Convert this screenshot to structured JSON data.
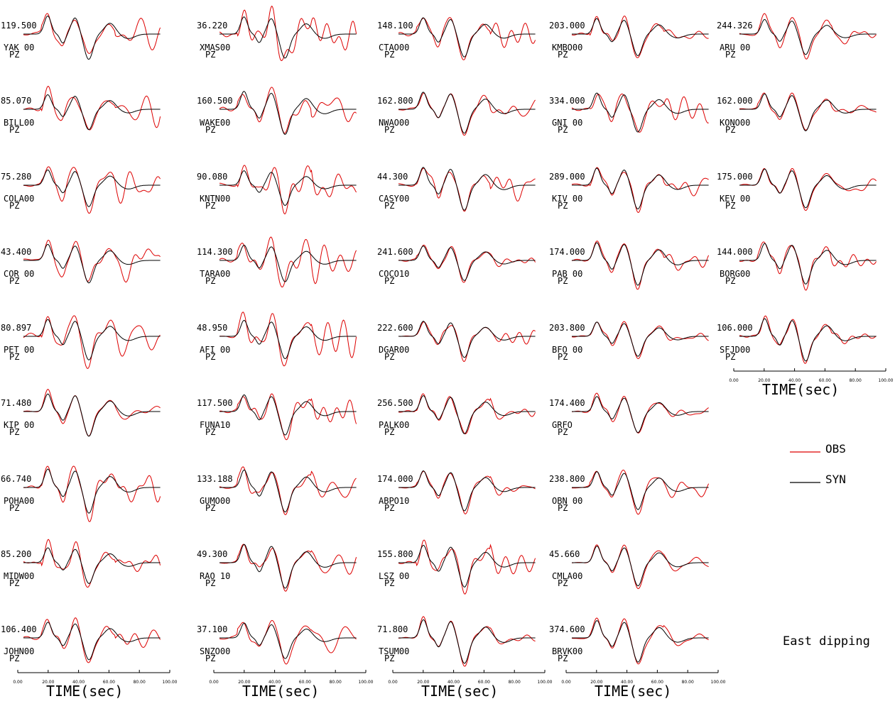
{
  "chart_data": {
    "type": "line",
    "xlabel": "TIME(sec)",
    "xlim": [
      0,
      100
    ],
    "x_ticks": [
      "0.00",
      "20.00",
      "40.00",
      "60.00",
      "80.00",
      "100.00"
    ],
    "component": "PZ",
    "legend": [
      {
        "name": "OBS",
        "color": "#dd0000"
      },
      {
        "name": "SYN",
        "color": "#000000"
      }
    ],
    "legend_placement": "right",
    "annotation": "East dipping",
    "columns": [
      [
        {
          "station": "YAK 00",
          "amplitude": "119.500"
        },
        {
          "station": "BILL00",
          "amplitude": "85.070"
        },
        {
          "station": "COLA00",
          "amplitude": "75.280"
        },
        {
          "station": "COR 00",
          "amplitude": "43.400"
        },
        {
          "station": "PET 00",
          "amplitude": "80.897"
        },
        {
          "station": "KIP 00",
          "amplitude": "71.480"
        },
        {
          "station": "POHA00",
          "amplitude": "66.740"
        },
        {
          "station": "MIDW00",
          "amplitude": "85.200"
        },
        {
          "station": "JOHN00",
          "amplitude": "106.400"
        }
      ],
      [
        {
          "station": "XMAS00",
          "amplitude": "36.220"
        },
        {
          "station": "WAKE00",
          "amplitude": "160.500"
        },
        {
          "station": "KNTN00",
          "amplitude": "90.080"
        },
        {
          "station": "TARA00",
          "amplitude": "114.300"
        },
        {
          "station": "AFI 00",
          "amplitude": "48.950"
        },
        {
          "station": "FUNA10",
          "amplitude": "117.500"
        },
        {
          "station": "GUMO00",
          "amplitude": "133.188"
        },
        {
          "station": "RAO 10",
          "amplitude": "49.300"
        },
        {
          "station": "SNZO00",
          "amplitude": "37.100"
        }
      ],
      [
        {
          "station": "CTAO00",
          "amplitude": "148.100"
        },
        {
          "station": "NWAO00",
          "amplitude": "162.800"
        },
        {
          "station": "CASY00",
          "amplitude": "44.300"
        },
        {
          "station": "COCO10",
          "amplitude": "241.600"
        },
        {
          "station": "DGAR00",
          "amplitude": "222.600"
        },
        {
          "station": "PALK00",
          "amplitude": "256.500"
        },
        {
          "station": "ABPO10",
          "amplitude": "174.000"
        },
        {
          "station": "LSZ 00",
          "amplitude": "155.800"
        },
        {
          "station": "TSUM00",
          "amplitude": "71.800"
        }
      ],
      [
        {
          "station": "KMBO00",
          "amplitude": "203.000"
        },
        {
          "station": "GNI 00",
          "amplitude": "334.000"
        },
        {
          "station": "KIV 00",
          "amplitude": "289.000"
        },
        {
          "station": "PAB 00",
          "amplitude": "174.000"
        },
        {
          "station": "BFO 00",
          "amplitude": "203.800"
        },
        {
          "station": "GRFO",
          "amplitude": "174.400"
        },
        {
          "station": "OBN 00",
          "amplitude": "238.800"
        },
        {
          "station": "CMLA00",
          "amplitude": "45.660"
        },
        {
          "station": "BRVK00",
          "amplitude": "374.600"
        }
      ],
      [
        {
          "station": "ARU 00",
          "amplitude": "244.326"
        },
        {
          "station": "KONO00",
          "amplitude": "162.000"
        },
        {
          "station": "KEV 00",
          "amplitude": "175.000"
        },
        {
          "station": "BORG00",
          "amplitude": "144.000"
        },
        {
          "station": "SFJD00",
          "amplitude": "106.000"
        }
      ]
    ]
  }
}
